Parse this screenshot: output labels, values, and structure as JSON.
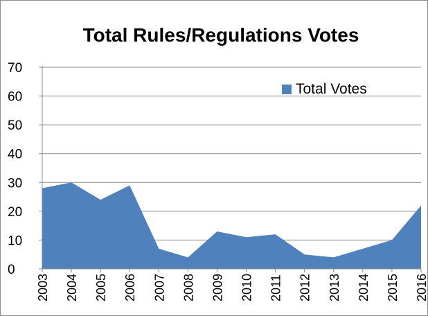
{
  "chart_data": {
    "type": "area",
    "title": "Total Rules/Regulations Votes",
    "xlabel": "",
    "ylabel": "",
    "categories": [
      "2003",
      "2004",
      "2005",
      "2006",
      "2007",
      "2008",
      "2009",
      "2010",
      "2011",
      "2012",
      "2013",
      "2014",
      "2015",
      "2016"
    ],
    "series": [
      {
        "name": "Total Votes",
        "values": [
          28,
          30,
          24,
          29,
          7,
          4,
          13,
          11,
          12,
          5,
          4,
          7,
          10,
          22
        ],
        "color": "#4f81bd"
      }
    ],
    "ylim": [
      0,
      70
    ],
    "yticks": [
      "0",
      "10",
      "20",
      "30",
      "40",
      "50",
      "60",
      "70"
    ],
    "grid": true,
    "legend_position": "top-right"
  }
}
